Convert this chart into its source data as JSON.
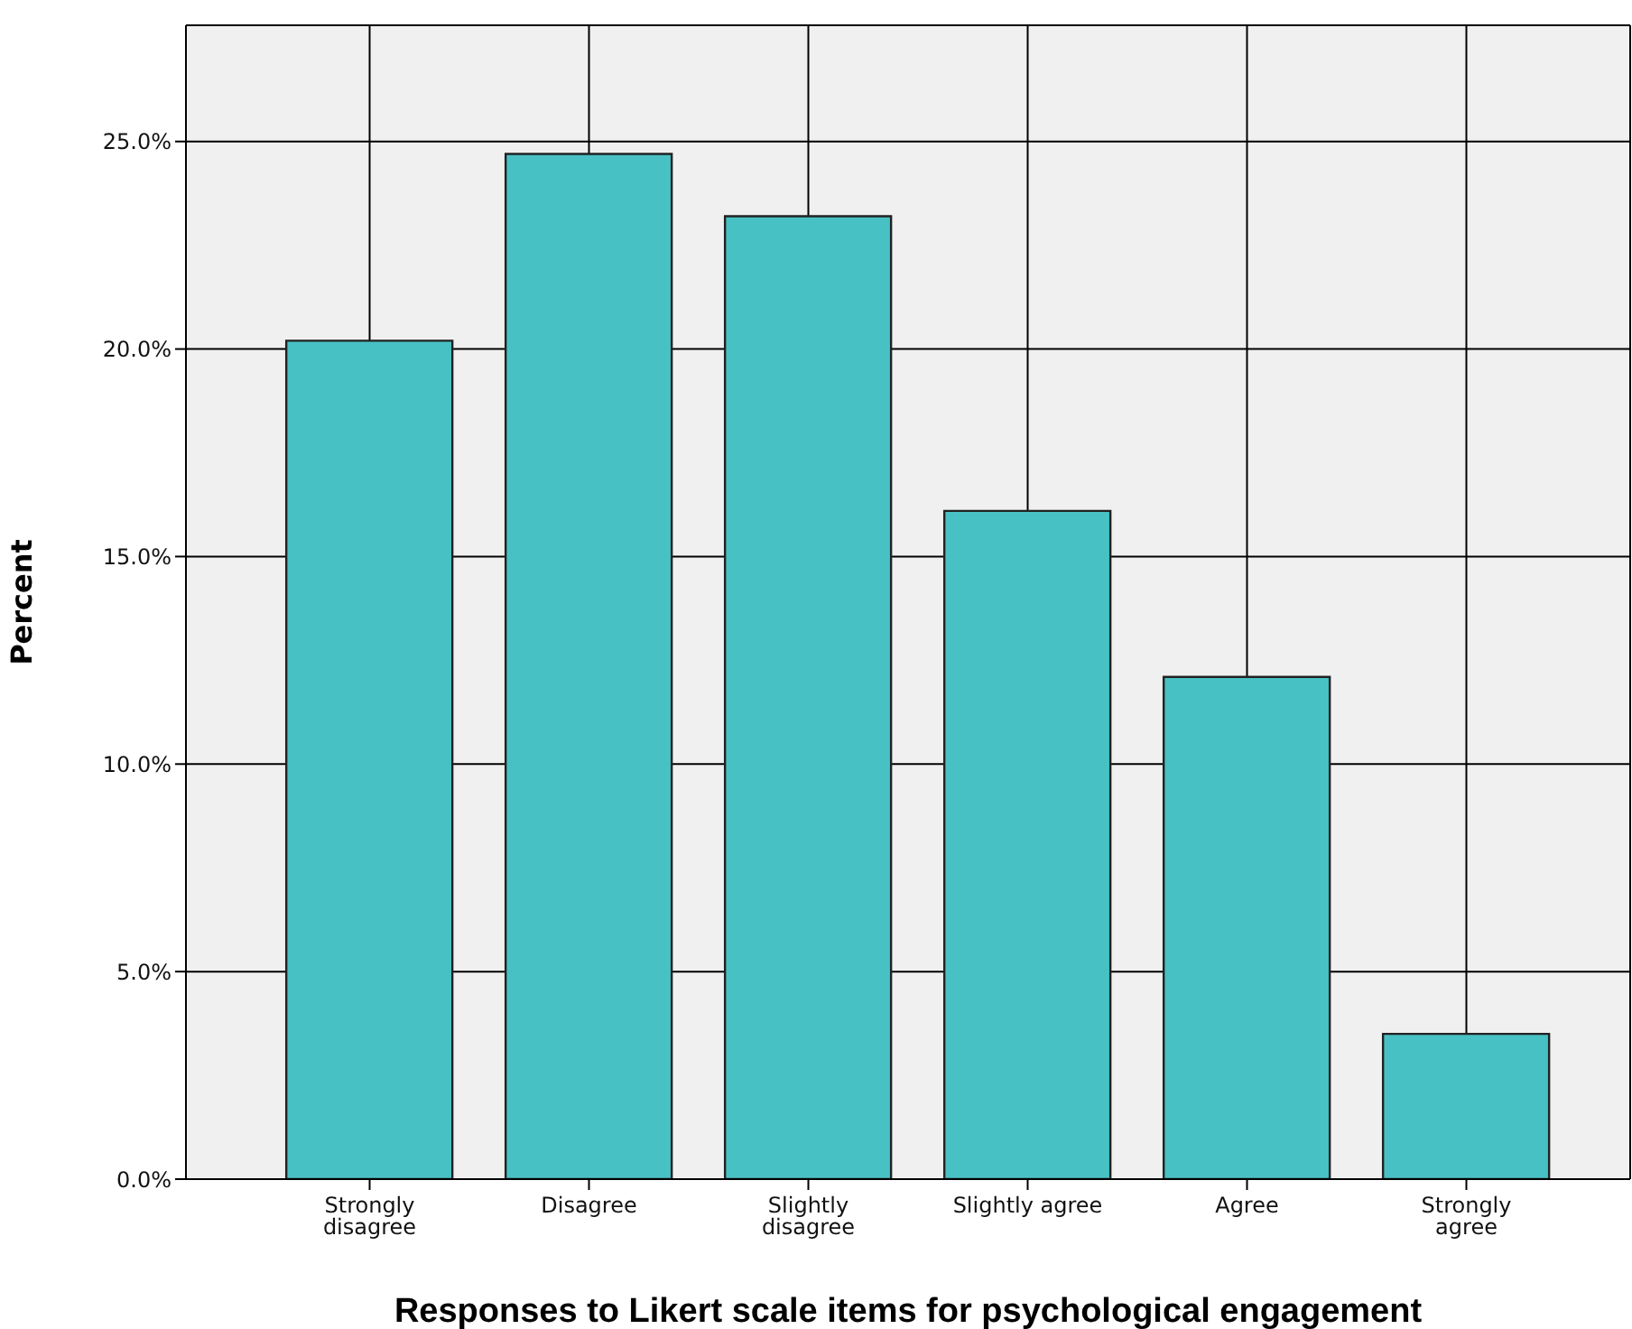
{
  "chart_data": {
    "type": "bar",
    "xlabel": "Responses to Likert scale items for psychological engagement",
    "ylabel": "Percent",
    "categories": [
      "Strongly disagree",
      "Disagree",
      "Slightly disagree",
      "Slightly agree",
      "Agree",
      "Strongly agree"
    ],
    "values": [
      20.2,
      24.7,
      23.2,
      16.1,
      12.1,
      3.5
    ],
    "color": "#48c1c4",
    "ylim": [
      0,
      27.8
    ],
    "yticks": [
      {
        "value": 0,
        "label": "0.0%"
      },
      {
        "value": 5,
        "label": "5.0%"
      },
      {
        "value": 10,
        "label": "10.0%"
      },
      {
        "value": 15,
        "label": "15.0%"
      },
      {
        "value": 20,
        "label": "20.0%"
      },
      {
        "value": 25,
        "label": "25.0%"
      }
    ],
    "grid": true
  }
}
